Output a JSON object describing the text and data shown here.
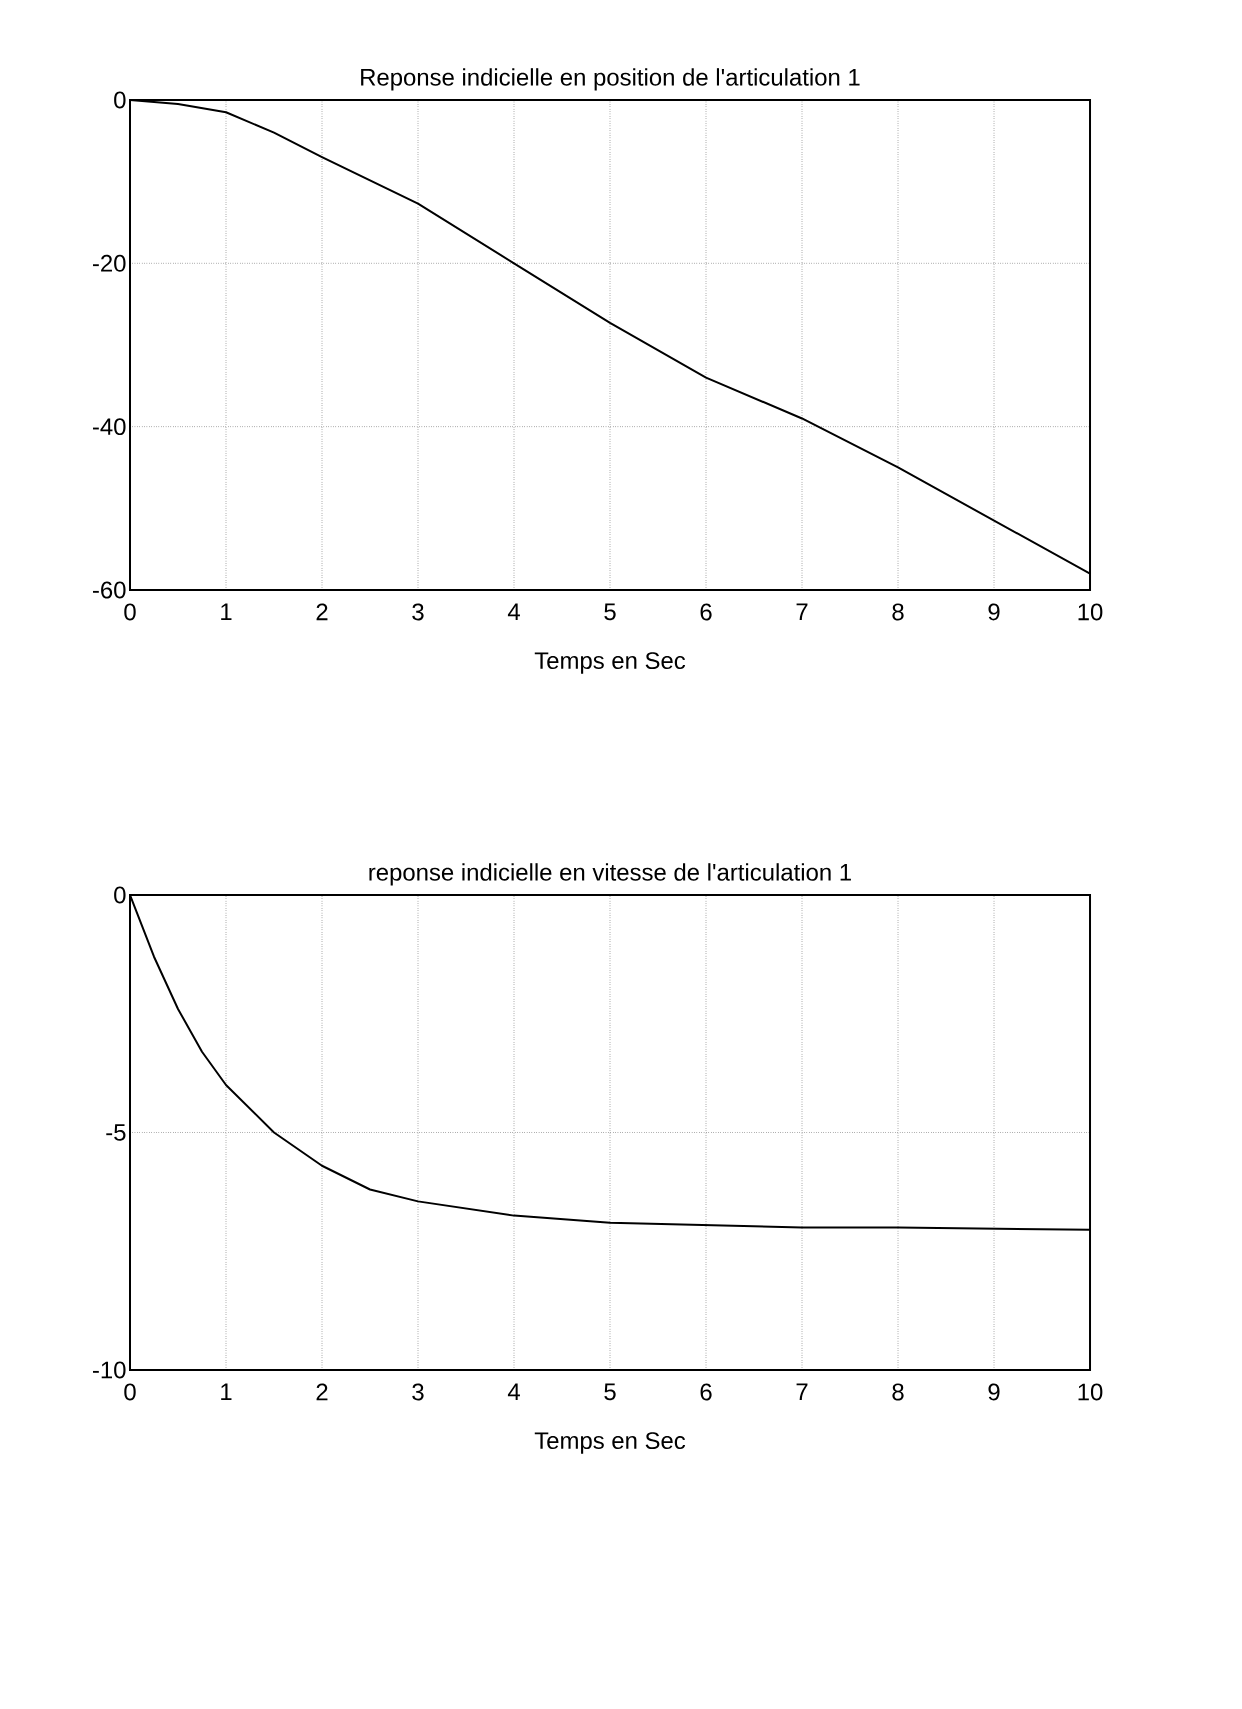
{
  "chart_data": [
    {
      "type": "line",
      "title": "Reponse indicielle en position de l'articulation 1",
      "xlabel": "Temps  en Sec",
      "x": [
        0,
        0.5,
        1,
        1.5,
        2,
        3,
        4,
        5,
        6,
        7,
        8,
        9,
        10
      ],
      "series": [
        {
          "color": "#000000",
          "values": [
            0,
            -0.5,
            -1.5,
            -4,
            -7,
            -12.7,
            -20,
            -27.3,
            -34,
            -39,
            -45,
            -51.5,
            -58
          ]
        }
      ],
      "xlim": [
        0,
        10
      ],
      "xticks": [
        0,
        1,
        2,
        3,
        4,
        5,
        6,
        7,
        8,
        9,
        10
      ],
      "ylim": [
        -60,
        0
      ],
      "yticks": [
        -60,
        -40,
        -20,
        0
      ],
      "grid": true
    },
    {
      "type": "line",
      "title": "reponse indicielle en vitesse de l'articulation 1",
      "xlabel": "Temps  en Sec",
      "x": [
        0,
        0.25,
        0.5,
        0.75,
        1,
        1.5,
        2,
        2.5,
        3,
        4,
        5,
        6,
        7,
        8,
        10
      ],
      "series": [
        {
          "color": "#000000",
          "values": [
            0,
            -1.3,
            -2.4,
            -3.3,
            -4.0,
            -5.0,
            -5.7,
            -6.2,
            -6.45,
            -6.75,
            -6.9,
            -6.95,
            -7.0,
            -7.0,
            -7.05
          ]
        }
      ],
      "xlim": [
        0,
        10
      ],
      "xticks": [
        0,
        1,
        2,
        3,
        4,
        5,
        6,
        7,
        8,
        9,
        10
      ],
      "ylim": [
        -10,
        0
      ],
      "yticks": [
        -10,
        -5,
        0
      ],
      "grid": true
    }
  ]
}
